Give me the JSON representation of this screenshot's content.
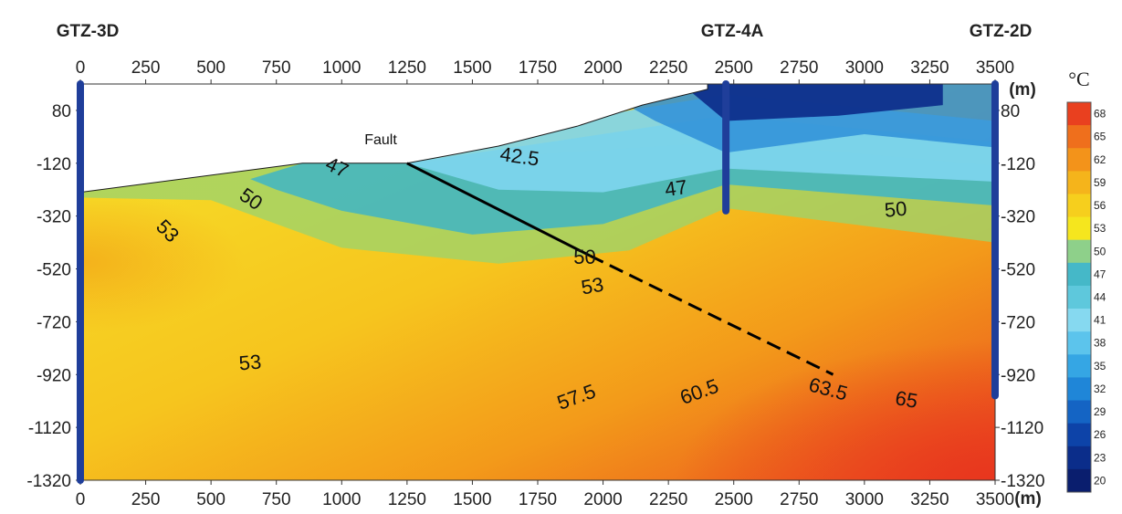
{
  "chart_data": {
    "type": "contour",
    "title": "",
    "x_unit": "(m)",
    "y_unit": "(m)",
    "colorbar_unit": "°C",
    "xlim": [
      0,
      3500
    ],
    "ylim": [
      -1320,
      180
    ],
    "x_ticks": [
      0,
      250,
      500,
      750,
      1000,
      1250,
      1500,
      1750,
      2000,
      2250,
      2500,
      2750,
      3000,
      3250,
      3500
    ],
    "y_ticks": [
      80,
      -120,
      -320,
      -520,
      -720,
      -920,
      -1120,
      -1320
    ],
    "right_y_ticks": [
      80,
      -120,
      -320,
      -520,
      -720,
      -920,
      -1120,
      -1320
    ],
    "colorbar_ticks": [
      20,
      23,
      26,
      29,
      32,
      35,
      38,
      41,
      44,
      47,
      50,
      53,
      56,
      59,
      62,
      65,
      68
    ],
    "colorbar_colors": [
      "#0a1e6e",
      "#0b2d8a",
      "#0d43a8",
      "#1464c4",
      "#1f86d8",
      "#35a6e4",
      "#5cc4ec",
      "#86d9f0",
      "#5ec8dc",
      "#45b8c8",
      "#8ed08a",
      "#f5e61e",
      "#f6cf1d",
      "#f5b41b",
      "#f3931a",
      "#ef6f1c",
      "#e9401f"
    ],
    "wells": [
      {
        "name": "GTZ-3D",
        "x": 0,
        "top": 180,
        "bottom": -1320
      },
      {
        "name": "GTZ-4A",
        "x": 2470,
        "top": 180,
        "bottom": -300
      },
      {
        "name": "GTZ-2D",
        "x": 3500,
        "top": 180,
        "bottom": -1000
      }
    ],
    "surface_profile": [
      [
        0,
        180
      ],
      [
        0,
        -230
      ],
      [
        850,
        -120
      ],
      [
        1250,
        -120
      ],
      [
        1600,
        -55
      ],
      [
        1900,
        20
      ],
      [
        2150,
        100
      ],
      [
        2400,
        160
      ],
      [
        2400,
        180
      ]
    ],
    "fault_label": "Fault",
    "fault_solid": [
      [
        1250,
        -120
      ],
      [
        1950,
        -470
      ]
    ],
    "fault_dashed": [
      [
        1950,
        -470
      ],
      [
        2880,
        -920
      ]
    ],
    "contour_labels": [
      {
        "text": "47",
        "x": 980,
        "y": -140,
        "rotation": 25
      },
      {
        "text": "42.5",
        "x": 1680,
        "y": -100,
        "rotation": 8
      },
      {
        "text": "47",
        "x": 2280,
        "y": -220,
        "rotation": -8
      },
      {
        "text": "50",
        "x": 650,
        "y": -260,
        "rotation": 35
      },
      {
        "text": "53",
        "x": 330,
        "y": -380,
        "rotation": 45
      },
      {
        "text": "50",
        "x": 3120,
        "y": -300,
        "rotation": -5
      },
      {
        "text": "50",
        "x": 1930,
        "y": -480,
        "rotation": 0
      },
      {
        "text": "53",
        "x": 1960,
        "y": -590,
        "rotation": -10
      },
      {
        "text": "53",
        "x": 650,
        "y": -880,
        "rotation": -5
      },
      {
        "text": "57.5",
        "x": 1900,
        "y": -1010,
        "rotation": -20
      },
      {
        "text": "60.5",
        "x": 2370,
        "y": -990,
        "rotation": -20
      },
      {
        "text": "63.5",
        "x": 2860,
        "y": -980,
        "rotation": 15
      },
      {
        "text": "65",
        "x": 3160,
        "y": -1020,
        "rotation": 10
      }
    ]
  }
}
